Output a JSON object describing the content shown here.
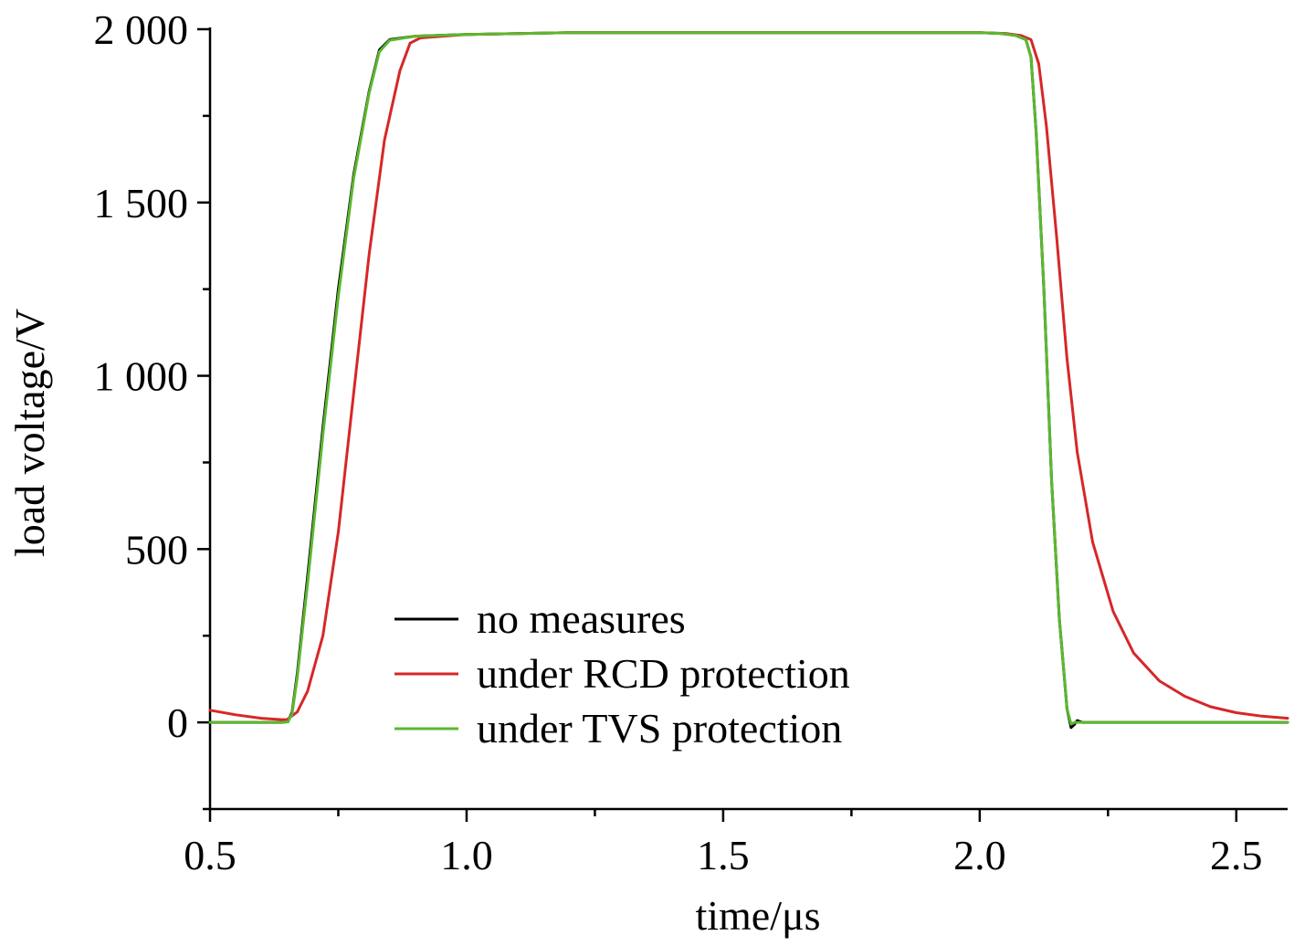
{
  "chart_data": {
    "type": "line",
    "title": "",
    "xlabel": "time/μs",
    "ylabel": "load voltage/V",
    "xlim": [
      0.5,
      2.6
    ],
    "ylim": [
      -250,
      2000
    ],
    "xticks": [
      0.5,
      1.0,
      1.5,
      2.0,
      2.5
    ],
    "xtick_labels": [
      "0.5",
      "1.0",
      "1.5",
      "2.0",
      "2.5"
    ],
    "xminor": [
      0.75,
      1.25,
      1.75,
      2.25
    ],
    "yticks": [
      0,
      500,
      1000,
      1500,
      2000
    ],
    "ytick_labels": [
      "0",
      "500",
      "1 000",
      "1 500",
      "2 000"
    ],
    "yminor": [
      -250,
      250,
      750,
      1250,
      1750
    ],
    "grid": false,
    "legend_position": "bottom-center",
    "series": [
      {
        "name": "no measures",
        "color": "#000000",
        "points": [
          [
            0.5,
            0
          ],
          [
            0.64,
            0
          ],
          [
            0.652,
            2
          ],
          [
            0.66,
            30
          ],
          [
            0.67,
            140
          ],
          [
            0.69,
            420
          ],
          [
            0.72,
            850
          ],
          [
            0.75,
            1250
          ],
          [
            0.78,
            1580
          ],
          [
            0.81,
            1820
          ],
          [
            0.83,
            1940
          ],
          [
            0.85,
            1970
          ],
          [
            0.9,
            1980
          ],
          [
            1.0,
            1985
          ],
          [
            1.2,
            1990
          ],
          [
            1.6,
            1990
          ],
          [
            2.0,
            1990
          ],
          [
            2.04,
            1988
          ],
          [
            2.07,
            1982
          ],
          [
            2.09,
            1970
          ],
          [
            2.1,
            1920
          ],
          [
            2.11,
            1700
          ],
          [
            2.125,
            1250
          ],
          [
            2.14,
            700
          ],
          [
            2.155,
            300
          ],
          [
            2.17,
            40
          ],
          [
            2.178,
            -15
          ],
          [
            2.185,
            -5
          ],
          [
            2.19,
            5
          ],
          [
            2.2,
            0
          ],
          [
            2.6,
            0
          ]
        ]
      },
      {
        "name": "under RCD protection",
        "color": "#d62728",
        "points": [
          [
            0.5,
            35
          ],
          [
            0.55,
            22
          ],
          [
            0.6,
            12
          ],
          [
            0.64,
            8
          ],
          [
            0.65,
            8
          ],
          [
            0.67,
            30
          ],
          [
            0.69,
            90
          ],
          [
            0.72,
            250
          ],
          [
            0.75,
            550
          ],
          [
            0.78,
            950
          ],
          [
            0.81,
            1350
          ],
          [
            0.84,
            1680
          ],
          [
            0.87,
            1880
          ],
          [
            0.89,
            1960
          ],
          [
            0.91,
            1975
          ],
          [
            1.0,
            1985
          ],
          [
            1.2,
            1990
          ],
          [
            1.6,
            1990
          ],
          [
            2.0,
            1990
          ],
          [
            2.05,
            1988
          ],
          [
            2.08,
            1982
          ],
          [
            2.1,
            1970
          ],
          [
            2.115,
            1900
          ],
          [
            2.13,
            1720
          ],
          [
            2.15,
            1400
          ],
          [
            2.17,
            1050
          ],
          [
            2.19,
            780
          ],
          [
            2.22,
            520
          ],
          [
            2.26,
            320
          ],
          [
            2.3,
            200
          ],
          [
            2.35,
            120
          ],
          [
            2.4,
            75
          ],
          [
            2.45,
            45
          ],
          [
            2.5,
            28
          ],
          [
            2.55,
            18
          ],
          [
            2.6,
            12
          ]
        ]
      },
      {
        "name": "under TVS protection",
        "color": "#5cb82e",
        "points": [
          [
            0.5,
            0
          ],
          [
            0.64,
            0
          ],
          [
            0.652,
            2
          ],
          [
            0.66,
            25
          ],
          [
            0.67,
            130
          ],
          [
            0.69,
            400
          ],
          [
            0.72,
            830
          ],
          [
            0.75,
            1230
          ],
          [
            0.78,
            1570
          ],
          [
            0.81,
            1815
          ],
          [
            0.83,
            1935
          ],
          [
            0.85,
            1968
          ],
          [
            0.9,
            1980
          ],
          [
            1.0,
            1985
          ],
          [
            1.2,
            1990
          ],
          [
            1.6,
            1990
          ],
          [
            2.0,
            1990
          ],
          [
            2.04,
            1988
          ],
          [
            2.07,
            1982
          ],
          [
            2.09,
            1970
          ],
          [
            2.1,
            1920
          ],
          [
            2.11,
            1700
          ],
          [
            2.125,
            1250
          ],
          [
            2.14,
            700
          ],
          [
            2.155,
            300
          ],
          [
            2.17,
            40
          ],
          [
            2.178,
            -5
          ],
          [
            2.185,
            0
          ],
          [
            2.2,
            0
          ],
          [
            2.6,
            0
          ]
        ]
      }
    ]
  }
}
